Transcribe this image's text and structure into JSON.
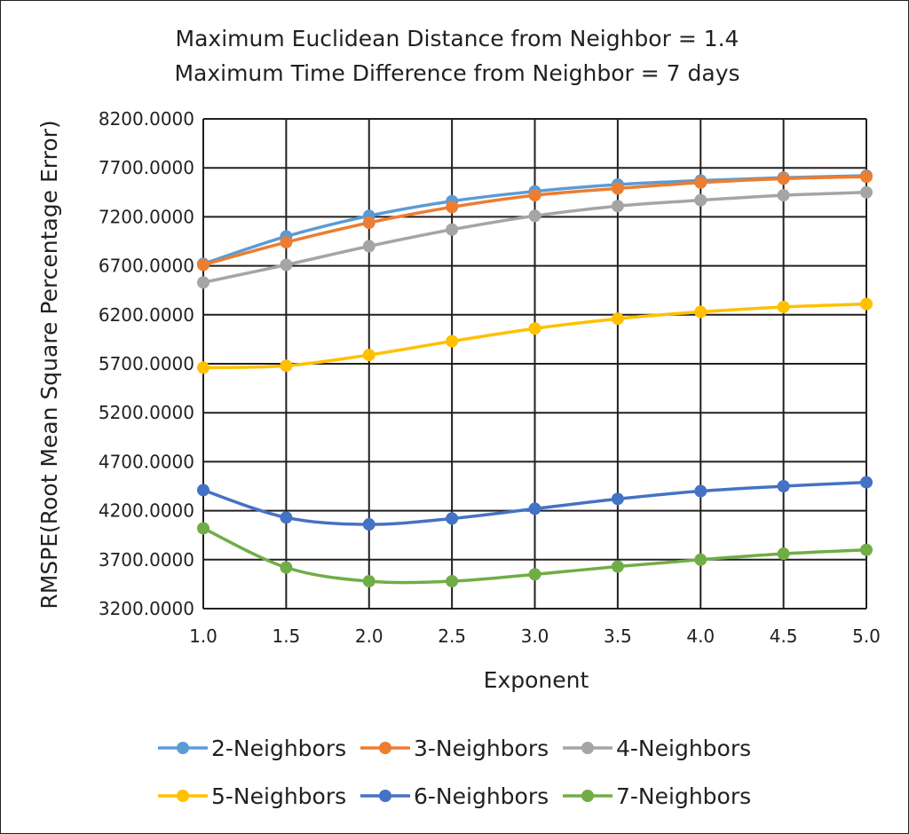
{
  "chart_data": {
    "type": "line",
    "title": "Maximum Euclidean Distance from Neighbor = 1.4",
    "subtitle": "Maximum Time Difference from Neighbor = 7 days",
    "xlabel": "Exponent",
    "ylabel": "RMSPE(Root Mean Square Percentage Error)",
    "x": [
      1.0,
      1.5,
      2.0,
      2.5,
      3.0,
      3.5,
      4.0,
      4.5,
      5.0
    ],
    "x_tick_labels": [
      "1.0",
      "1.5",
      "2.0",
      "2.5",
      "3.0",
      "3.5",
      "4.0",
      "4.5",
      "5.0"
    ],
    "xlim": [
      1.0,
      5.0
    ],
    "ylim": [
      3200,
      8200
    ],
    "y_ticks": [
      3200,
      3700,
      4200,
      4700,
      5200,
      5700,
      6200,
      6700,
      7200,
      7700,
      8200
    ],
    "y_tick_labels": [
      "3200.0000",
      "3700.0000",
      "4200.0000",
      "4700.0000",
      "5200.0000",
      "5700.0000",
      "6200.0000",
      "6700.0000",
      "7200.0000",
      "7700.0000",
      "8200.0000"
    ],
    "grid": true,
    "legend_position": "bottom",
    "series": [
      {
        "name": "2-Neighbors",
        "color": "#5b9bd5",
        "values": [
          6720,
          7000,
          7210,
          7360,
          7460,
          7530,
          7570,
          7600,
          7620
        ]
      },
      {
        "name": "3-Neighbors",
        "color": "#ed7d31",
        "values": [
          6710,
          6940,
          7140,
          7300,
          7420,
          7490,
          7550,
          7590,
          7610
        ]
      },
      {
        "name": "4-Neighbors",
        "color": "#a5a5a5",
        "values": [
          6530,
          6710,
          6900,
          7070,
          7210,
          7310,
          7370,
          7420,
          7450
        ]
      },
      {
        "name": "5-Neighbors",
        "color": "#ffc000",
        "values": [
          5660,
          5680,
          5790,
          5930,
          6060,
          6160,
          6230,
          6280,
          6310
        ]
      },
      {
        "name": "6-Neighbors",
        "color": "#4472c4",
        "values": [
          4410,
          4130,
          4060,
          4120,
          4220,
          4320,
          4400,
          4450,
          4490
        ]
      },
      {
        "name": "7-Neighbors",
        "color": "#70ad47",
        "values": [
          4020,
          3620,
          3480,
          3480,
          3550,
          3630,
          3700,
          3760,
          3800
        ]
      }
    ]
  }
}
